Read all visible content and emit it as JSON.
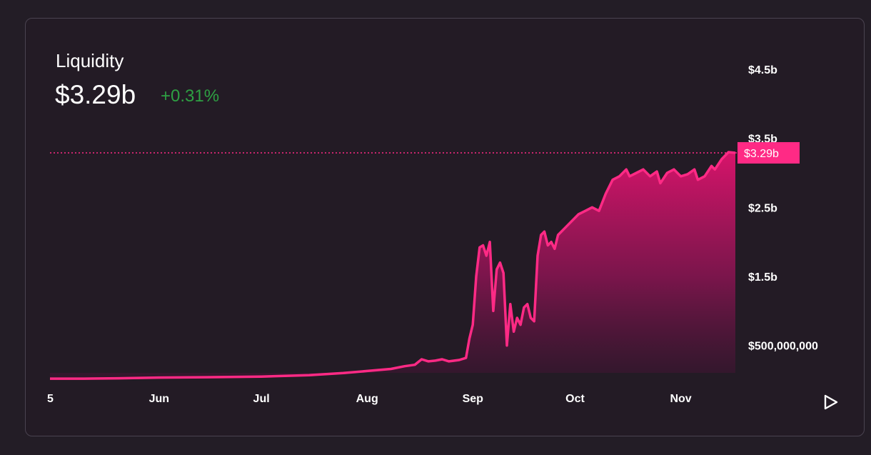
{
  "header": {
    "title": "Liquidity",
    "value": "$3.29b",
    "change": "+0.31%",
    "change_color": "#2ea043"
  },
  "price_tag": "$3.29b",
  "colors": {
    "line": "#ff2a85",
    "background": "#231b25"
  },
  "play_icon": "play-icon",
  "chart_data": {
    "type": "area",
    "title": "Liquidity",
    "ylim": [
      0,
      4500000000
    ],
    "y_ticks": [
      {
        "value": 500000000,
        "label": "$500,000,000"
      },
      {
        "value": 1500000000,
        "label": "$1.5b"
      },
      {
        "value": 2500000000,
        "label": "$2.5b"
      },
      {
        "value": 3500000000,
        "label": "$3.5b"
      },
      {
        "value": 4500000000,
        "label": "$4.5b"
      }
    ],
    "x_ticks": [
      {
        "date": "2023-05-05",
        "label": "5"
      },
      {
        "date": "2023-06-01",
        "label": "Jun"
      },
      {
        "date": "2023-07-01",
        "label": "Jul"
      },
      {
        "date": "2023-08-01",
        "label": "Aug"
      },
      {
        "date": "2023-09-01",
        "label": "Sep"
      },
      {
        "date": "2023-10-01",
        "label": "Oct"
      },
      {
        "date": "2023-11-01",
        "label": "Nov"
      }
    ],
    "current_value": 3290000000,
    "series": [
      {
        "points": [
          [
            "2023-04-30",
            20000000.0
          ],
          [
            "2023-05-10",
            20000000.0
          ],
          [
            "2023-05-20",
            25000000.0
          ],
          [
            "2023-06-01",
            35000000.0
          ],
          [
            "2023-06-15",
            40000000.0
          ],
          [
            "2023-07-01",
            50000000.0
          ],
          [
            "2023-07-15",
            70000000.0
          ],
          [
            "2023-07-25",
            100000000.0
          ],
          [
            "2023-08-01",
            130000000.0
          ],
          [
            "2023-08-08",
            160000000.0
          ],
          [
            "2023-08-12",
            200000000.0
          ],
          [
            "2023-08-15",
            220000000.0
          ],
          [
            "2023-08-17",
            300000000.0
          ],
          [
            "2023-08-19",
            270000000.0
          ],
          [
            "2023-08-21",
            280000000.0
          ],
          [
            "2023-08-23",
            300000000.0
          ],
          [
            "2023-08-25",
            270000000.0
          ],
          [
            "2023-08-28",
            290000000.0
          ],
          [
            "2023-08-30",
            320000000.0
          ],
          [
            "2023-08-31",
            600000000.0
          ],
          [
            "2023-09-01",
            800000000.0
          ],
          [
            "2023-09-02",
            1500000000.0
          ],
          [
            "2023-09-03",
            1920000000.0
          ],
          [
            "2023-09-04",
            1950000000.0
          ],
          [
            "2023-09-05",
            1800000000.0
          ],
          [
            "2023-09-06",
            2000000000.0
          ],
          [
            "2023-09-07",
            1000000000.0
          ],
          [
            "2023-09-08",
            1600000000.0
          ],
          [
            "2023-09-09",
            1700000000.0
          ],
          [
            "2023-09-10",
            1550000000.0
          ],
          [
            "2023-09-11",
            500000000.0
          ],
          [
            "2023-09-12",
            1100000000.0
          ],
          [
            "2023-09-13",
            700000000.0
          ],
          [
            "2023-09-14",
            900000000.0
          ],
          [
            "2023-09-15",
            800000000.0
          ],
          [
            "2023-09-16",
            1050000000.0
          ],
          [
            "2023-09-17",
            1100000000.0
          ],
          [
            "2023-09-18",
            900000000.0
          ],
          [
            "2023-09-19",
            850000000.0
          ],
          [
            "2023-09-20",
            1800000000.0
          ],
          [
            "2023-09-21",
            2100000000.0
          ],
          [
            "2023-09-22",
            2150000000.0
          ],
          [
            "2023-09-23",
            1950000000.0
          ],
          [
            "2023-09-24",
            2000000000.0
          ],
          [
            "2023-09-25",
            1900000000.0
          ],
          [
            "2023-09-26",
            2100000000.0
          ],
          [
            "2023-09-28",
            2200000000.0
          ],
          [
            "2023-09-30",
            2300000000.0
          ],
          [
            "2023-10-02",
            2400000000.0
          ],
          [
            "2023-10-04",
            2450000000.0
          ],
          [
            "2023-10-06",
            2500000000.0
          ],
          [
            "2023-10-08",
            2450000000.0
          ],
          [
            "2023-10-10",
            2700000000.0
          ],
          [
            "2023-10-12",
            2900000000.0
          ],
          [
            "2023-10-14",
            2950000000.0
          ],
          [
            "2023-10-16",
            3050000000.0
          ],
          [
            "2023-10-17",
            2950000000.0
          ],
          [
            "2023-10-19",
            3000000000.0
          ],
          [
            "2023-10-21",
            3050000000.0
          ],
          [
            "2023-10-23",
            2950000000.0
          ],
          [
            "2023-10-25",
            3020000000.0
          ],
          [
            "2023-10-26",
            2850000000.0
          ],
          [
            "2023-10-28",
            3000000000.0
          ],
          [
            "2023-10-30",
            3050000000.0
          ],
          [
            "2023-11-01",
            2950000000.0
          ],
          [
            "2023-11-03",
            2980000000.0
          ],
          [
            "2023-11-05",
            3050000000.0
          ],
          [
            "2023-11-06",
            2900000000.0
          ],
          [
            "2023-11-08",
            2950000000.0
          ],
          [
            "2023-11-10",
            3100000000.0
          ],
          [
            "2023-11-11",
            3050000000.0
          ],
          [
            "2023-11-13",
            3200000000.0
          ],
          [
            "2023-11-15",
            3300000000.0
          ],
          [
            "2023-11-17",
            3290000000.0
          ]
        ]
      }
    ]
  }
}
